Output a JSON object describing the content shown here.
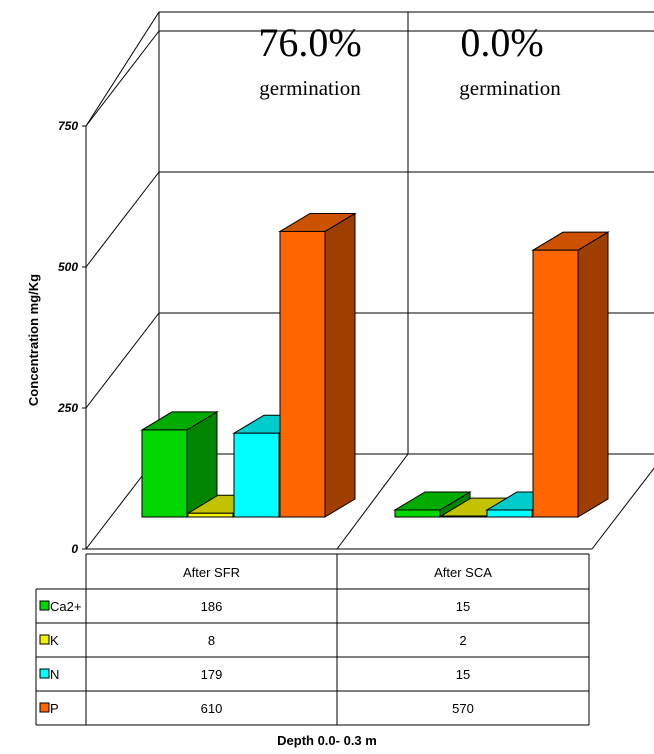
{
  "chart_data": {
    "type": "bar",
    "ylabel": "Concentration mg/Kg",
    "xlabel": "Depth 0.0- 0.3 m",
    "yticks": [
      "0",
      "250",
      "500",
      "750"
    ],
    "ylim": [
      0,
      750
    ],
    "categories": [
      "After SFR",
      "After SCA"
    ],
    "series": [
      {
        "name": "Ca2+",
        "values": [
          186,
          15
        ],
        "color": "#00d600"
      },
      {
        "name": "K",
        "values": [
          8,
          2
        ],
        "color": "#f2f200"
      },
      {
        "name": "N",
        "values": [
          179,
          15
        ],
        "color": "#00ffff"
      },
      {
        "name": "P",
        "values": [
          610,
          570
        ],
        "color": "#ff6600"
      }
    ],
    "table": {
      "rows": [
        {
          "label": "Ca2+",
          "values": [
            "186",
            "15"
          ]
        },
        {
          "label": "K",
          "values": [
            "8",
            "2"
          ]
        },
        {
          "label": "N",
          "values": [
            "179",
            "15"
          ]
        },
        {
          "label": "P",
          "values": [
            "610",
            "570"
          ]
        }
      ]
    },
    "annotations": [
      {
        "percent": "76.0%",
        "label": "germination"
      },
      {
        "percent": "0.0%",
        "label": "germination"
      }
    ],
    "grid": true,
    "legend": "table"
  }
}
